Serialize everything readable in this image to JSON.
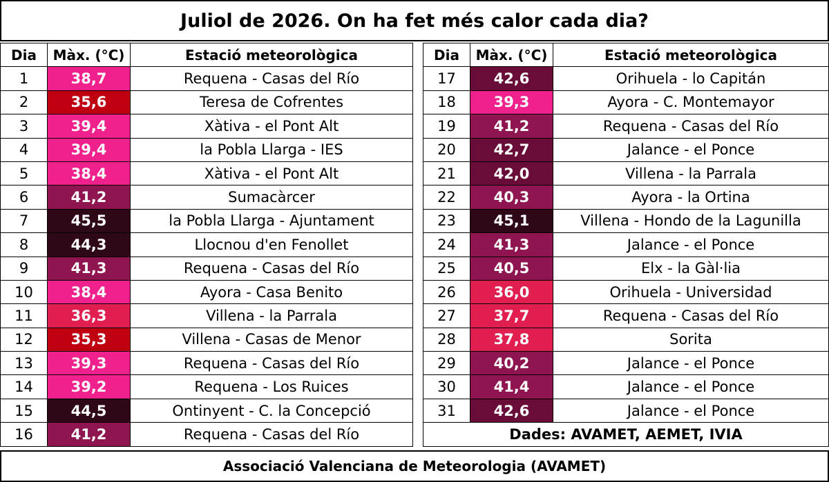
{
  "title": "Juliol de 2026. On ha fet més calor cada dia?",
  "headers": {
    "day": "Dia",
    "max": "Màx. (°C)",
    "station": "Estació meteorològica"
  },
  "left_rows": [
    {
      "day": "1",
      "temp": "38,7",
      "station": "Requena - Casas del Río",
      "color": "#F0208C"
    },
    {
      "day": "2",
      "temp": "35,6",
      "station": "Teresa de Cofrentes",
      "color": "#C00010"
    },
    {
      "day": "3",
      "temp": "39,4",
      "station": "Xàtiva - el Pont Alt",
      "color": "#F0208C"
    },
    {
      "day": "4",
      "temp": "39,4",
      "station": "la Pobla Llarga - IES",
      "color": "#F0208C"
    },
    {
      "day": "5",
      "temp": "38,4",
      "station": "Xàtiva - el Pont Alt",
      "color": "#F0208C"
    },
    {
      "day": "6",
      "temp": "41,2",
      "station": "Sumacàrcer",
      "color": "#8E1550"
    },
    {
      "day": "7",
      "temp": "45,5",
      "station": "la Pobla Llarga - Ajuntament",
      "color": "#2E0818"
    },
    {
      "day": "8",
      "temp": "44,3",
      "station": "Llocnou d'en Fenollet",
      "color": "#2E0818"
    },
    {
      "day": "9",
      "temp": "41,3",
      "station": "Requena - Casas del Río",
      "color": "#8E1550"
    },
    {
      "day": "10",
      "temp": "38,4",
      "station": "Ayora - Casa Benito",
      "color": "#F0208C"
    },
    {
      "day": "11",
      "temp": "36,3",
      "station": "Villena - la Parrala",
      "color": "#E01E50"
    },
    {
      "day": "12",
      "temp": "35,3",
      "station": "Villena - Casas de Menor",
      "color": "#C00010"
    },
    {
      "day": "13",
      "temp": "39,3",
      "station": "Requena - Casas del Río",
      "color": "#F0208C"
    },
    {
      "day": "14",
      "temp": "39,2",
      "station": "Requena - Los Ruices",
      "color": "#F0208C"
    },
    {
      "day": "15",
      "temp": "44,5",
      "station": "Ontinyent - C. la Concepció",
      "color": "#2E0818"
    },
    {
      "day": "16",
      "temp": "41,2",
      "station": "Requena - Casas del Río",
      "color": "#8E1550"
    }
  ],
  "right_rows": [
    {
      "day": "17",
      "temp": "42,6",
      "station": "Orihuela - lo Capitán",
      "color": "#6A0C38"
    },
    {
      "day": "18",
      "temp": "39,3",
      "station": "Ayora - C. Montemayor",
      "color": "#F0208C"
    },
    {
      "day": "19",
      "temp": "41,2",
      "station": "Requena - Casas del Río",
      "color": "#8E1550"
    },
    {
      "day": "20",
      "temp": "42,7",
      "station": "Jalance - el Ponce",
      "color": "#6A0C38"
    },
    {
      "day": "21",
      "temp": "42,0",
      "station": "Villena - la Parrala",
      "color": "#6A0C38"
    },
    {
      "day": "22",
      "temp": "40,3",
      "station": "Ayora - la Ortina",
      "color": "#8E1550"
    },
    {
      "day": "23",
      "temp": "45,1",
      "station": "Villena - Hondo de la Lagunilla",
      "color": "#2E0818"
    },
    {
      "day": "24",
      "temp": "41,3",
      "station": "Jalance - el Ponce",
      "color": "#8E1550"
    },
    {
      "day": "25",
      "temp": "40,5",
      "station": "Elx - la Gàl·lia",
      "color": "#8E1550"
    },
    {
      "day": "26",
      "temp": "36,0",
      "station": "Orihuela - Universidad",
      "color": "#E01E50"
    },
    {
      "day": "27",
      "temp": "37,7",
      "station": "Requena - Casas del Río",
      "color": "#E01E50"
    },
    {
      "day": "28",
      "temp": "37,8",
      "station": "Sorita",
      "color": "#E01E50"
    },
    {
      "day": "29",
      "temp": "40,2",
      "station": "Jalance - el Ponce",
      "color": "#8E1550"
    },
    {
      "day": "30",
      "temp": "41,4",
      "station": "Jalance - el Ponce",
      "color": "#8E1550"
    },
    {
      "day": "31",
      "temp": "42,6",
      "station": "Jalance - el Ponce",
      "color": "#6A0C38"
    }
  ],
  "sources": "Dades: AVAMET, AEMET, IVIA",
  "footer": "Associació Valenciana de Meteorologia (AVAMET)"
}
